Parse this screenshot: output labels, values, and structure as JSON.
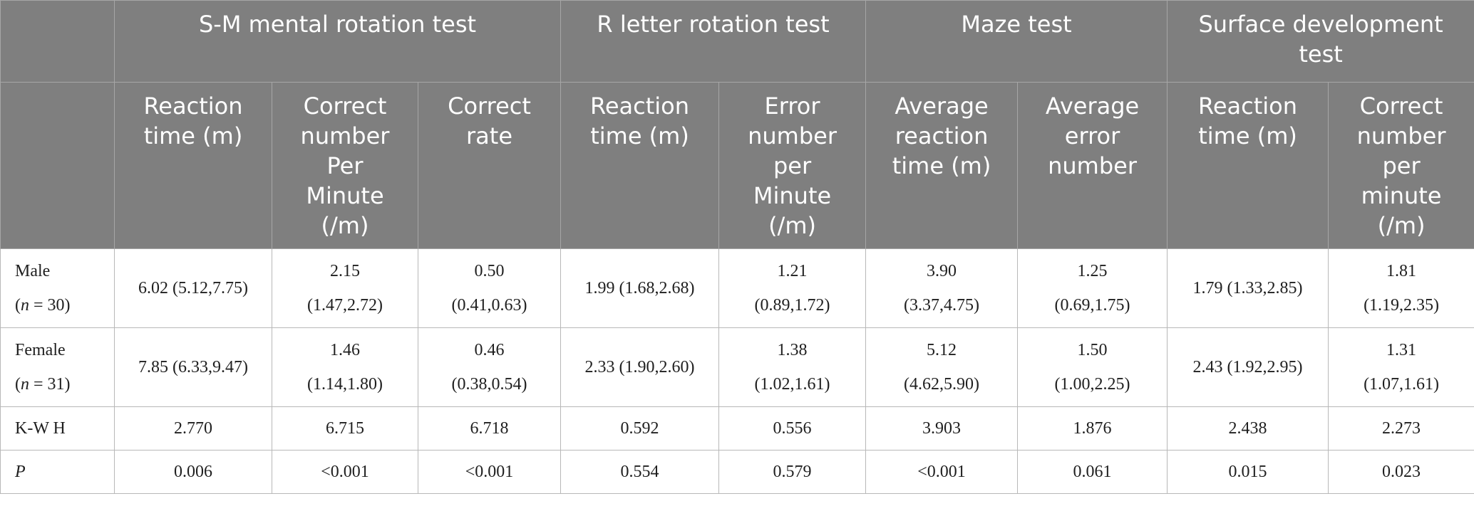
{
  "table": {
    "groups": [
      {
        "label": "S-M mental rotation test"
      },
      {
        "label": "R letter rotation test"
      },
      {
        "label": "Maze test"
      },
      {
        "label": "Surface development test"
      }
    ],
    "subheaders": [
      "Reaction time (m)",
      "Correct number Per Minute (/m)",
      "Correct rate",
      "Reaction time (m)",
      "Error number per Minute (/m)",
      "Average reaction time (m)",
      "Average error number",
      "Reaction time (m)",
      "Correct number per minute (/m)"
    ],
    "rows": [
      {
        "label": "Male",
        "n_prefix": "(",
        "n_var": "n",
        "n_suffix": " = 30)",
        "cells": [
          [
            "6.02 (5.12,7.75)"
          ],
          [
            "2.15",
            "(1.47,2.72)"
          ],
          [
            "0.50",
            "(0.41,0.63)"
          ],
          [
            "1.99 (1.68,2.68)"
          ],
          [
            "1.21",
            "(0.89,1.72)"
          ],
          [
            "3.90",
            "(3.37,4.75)"
          ],
          [
            "1.25",
            "(0.69,1.75)"
          ],
          [
            "1.79 (1.33,2.85)"
          ],
          [
            "1.81",
            "(1.19,2.35)"
          ]
        ]
      },
      {
        "label": "Female",
        "n_prefix": "(",
        "n_var": "n",
        "n_suffix": " = 31)",
        "cells": [
          [
            "7.85 (6.33,9.47)"
          ],
          [
            "1.46",
            "(1.14,1.80)"
          ],
          [
            "0.46",
            "(0.38,0.54)"
          ],
          [
            "2.33 (1.90,2.60)"
          ],
          [
            "1.38",
            "(1.02,1.61)"
          ],
          [
            "5.12",
            "(4.62,5.90)"
          ],
          [
            "1.50",
            "(1.00,2.25)"
          ],
          [
            "2.43 (1.92,2.95)"
          ],
          [
            "1.31",
            "(1.07,1.61)"
          ]
        ]
      },
      {
        "label": "K-W H",
        "cells": [
          [
            "2.770"
          ],
          [
            "6.715"
          ],
          [
            "6.718"
          ],
          [
            "0.592"
          ],
          [
            "0.556"
          ],
          [
            "3.903"
          ],
          [
            "1.876"
          ],
          [
            "2.438"
          ],
          [
            "2.273"
          ]
        ]
      },
      {
        "label": "P",
        "italic": true,
        "cells": [
          [
            "0.006"
          ],
          [
            "<0.001"
          ],
          [
            "<0.001"
          ],
          [
            "0.554"
          ],
          [
            "0.579"
          ],
          [
            "<0.001"
          ],
          [
            "0.061"
          ],
          [
            "0.015"
          ],
          [
            "0.023"
          ]
        ]
      }
    ]
  }
}
